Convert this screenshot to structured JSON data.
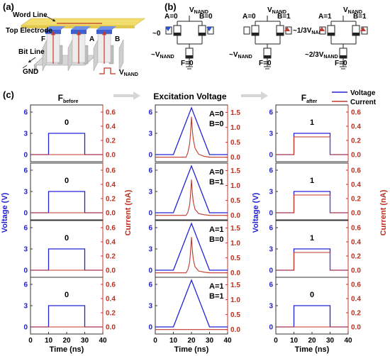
{
  "panel_labels": {
    "a": "(a)",
    "b": "(b)",
    "c": "(c)"
  },
  "panel_a": {
    "word_line": "Word Line",
    "top_electrode": "Top Electrode",
    "bit_line": "Bit Line",
    "gnd": "GND",
    "vnand_main": "V",
    "vnand_sub": "NAND",
    "cells": [
      "F",
      "A",
      "B"
    ]
  },
  "panel_b": {
    "circuits": [
      {
        "vnand": "V",
        "vnand_sub": "NAND",
        "a_label": "A=0",
        "b_label": "B=0",
        "f_label": "F=0",
        "left_note": "~0",
        "bottom_note_main": "~V",
        "bottom_note_sub": "NAND",
        "right_note_main": "",
        "right_note_sub": ""
      },
      {
        "vnand": "V",
        "vnand_sub": "NAND",
        "a_label": "A=0",
        "b_label": "B=1",
        "f_label": "F=0",
        "left_note": "",
        "bottom_note_main": "~V",
        "bottom_note_sub": "NAND",
        "right_note_main": "~1/3V",
        "right_note_sub": "NAND"
      },
      {
        "vnand": "V",
        "vnand_sub": "NAND",
        "a_label": "A=1",
        "b_label": "B=1",
        "f_label": "F=0",
        "left_note": "",
        "bottom_note_main": "~2/3V",
        "bottom_note_sub": "NAND",
        "right_note_main": "",
        "right_note_sub": ""
      }
    ]
  },
  "panel_c": {
    "column_titles": {
      "before_main": "F",
      "before_sub": "before",
      "excitation": "Excitation Voltage",
      "after_main": "F",
      "after_sub": "after"
    },
    "legend": [
      "Voltage",
      "Current"
    ],
    "ylabel_voltage": "Voltage (V)",
    "ylabel_current": "Current (nA)",
    "xlabel": "Time (ns)",
    "voltage_ticks": [
      "0",
      "3",
      "6"
    ],
    "current_ticks_small": [
      "0.0",
      "0.2",
      "0.4",
      "0.6"
    ],
    "current_ticks_large": [
      "0.0",
      "0.5",
      "1.0",
      "1.5"
    ],
    "x_ticks": [
      "0",
      "10",
      "20",
      "30",
      "40"
    ],
    "before_states": [
      "0",
      "0",
      "0",
      "0"
    ],
    "excitation_states": [
      {
        "a": "A=0",
        "b": "B=0"
      },
      {
        "a": "A=0",
        "b": "B=1"
      },
      {
        "a": "A=1",
        "b": "B=0"
      },
      {
        "a": "A=1",
        "b": "B=1"
      }
    ],
    "after_states": [
      "1",
      "1",
      "1",
      "0"
    ]
  },
  "colors": {
    "voltage": "#2323d6",
    "current": "#c0392b",
    "word_line": "#f2dd6e",
    "top_electrode": "#4a6fd6",
    "bit_line": "#c7c7c7",
    "arrow": "#c0392b"
  },
  "chart_data": [
    {
      "type": "line",
      "title": "Fbefore",
      "xlabel": "Time (ns)",
      "xlim": [
        0,
        40
      ],
      "ylim_voltage": [
        -1,
        7
      ],
      "ylim_current": [
        -0.1,
        0.7
      ],
      "series": [
        {
          "name": "Voltage",
          "x": [
            0,
            10,
            10,
            30,
            30,
            40
          ],
          "rows_y": [
            [
              0,
              0,
              3,
              3,
              0,
              0
            ],
            [
              0,
              0,
              3,
              3,
              0,
              0
            ],
            [
              0,
              0,
              3,
              3,
              0,
              0
            ],
            [
              0,
              0,
              3,
              3,
              0,
              0
            ]
          ]
        },
        {
          "name": "Current",
          "x": [
            0,
            40
          ],
          "rows_y": [
            [
              0,
              0
            ],
            [
              0,
              0
            ],
            [
              0,
              0
            ],
            [
              0,
              0
            ]
          ]
        }
      ],
      "state_labels": [
        "0",
        "0",
        "0",
        "0"
      ]
    },
    {
      "type": "line",
      "title": "Excitation Voltage",
      "xlabel": "Time (ns)",
      "xlim": [
        0,
        40
      ],
      "ylim_voltage": [
        -1,
        7
      ],
      "ylim_current": [
        -0.15,
        1.75
      ],
      "series": [
        {
          "name": "Voltage",
          "x": [
            0,
            10,
            20,
            30,
            40
          ],
          "rows_y": [
            [
              0,
              0,
              6.6,
              0,
              0
            ],
            [
              0,
              0,
              6.6,
              0,
              0
            ],
            [
              0,
              0,
              6.6,
              0,
              0
            ],
            [
              0,
              0,
              6.6,
              0,
              0
            ]
          ]
        },
        {
          "name": "Current",
          "x": [
            0,
            17,
            18,
            19,
            19.5,
            20,
            20.5,
            21,
            22,
            24,
            27,
            30,
            40
          ],
          "rows_y": [
            [
              0,
              0,
              0.15,
              0.45,
              0.8,
              1.35,
              0.9,
              0.6,
              0.3,
              0.1,
              0.03,
              0,
              0
            ],
            [
              0,
              0,
              0.1,
              0.35,
              0.7,
              1.2,
              0.75,
              0.45,
              0.2,
              0.06,
              0.02,
              0,
              0
            ],
            [
              0,
              0,
              0.1,
              0.35,
              0.7,
              1.2,
              0.75,
              0.45,
              0.2,
              0.06,
              0.02,
              0,
              0
            ],
            [
              0,
              0,
              0,
              0,
              0,
              0,
              0,
              0,
              0,
              0,
              0,
              0,
              0
            ]
          ]
        }
      ],
      "state_labels": [
        [
          "A=0",
          "B=0"
        ],
        [
          "A=0",
          "B=1"
        ],
        [
          "A=1",
          "B=0"
        ],
        [
          "A=1",
          "B=1"
        ]
      ]
    },
    {
      "type": "line",
      "title": "Fafter",
      "xlabel": "Time (ns)",
      "xlim": [
        0,
        40
      ],
      "ylim_voltage": [
        -1,
        7
      ],
      "ylim_current": [
        -0.1,
        0.7
      ],
      "series": [
        {
          "name": "Voltage",
          "x": [
            0,
            10,
            10,
            30,
            30,
            40
          ],
          "rows_y": [
            [
              0,
              0,
              3,
              3,
              0,
              0
            ],
            [
              0,
              0,
              3,
              3,
              0,
              0
            ],
            [
              0,
              0,
              3,
              3,
              0,
              0
            ],
            [
              0,
              0,
              3,
              3,
              0,
              0
            ]
          ]
        },
        {
          "name": "Current",
          "x": [
            0,
            10,
            10,
            30,
            30,
            40
          ],
          "rows_y": [
            [
              0,
              0,
              0.25,
              0.25,
              0,
              0
            ],
            [
              0,
              0,
              0.25,
              0.25,
              0,
              0
            ],
            [
              0,
              0,
              0.25,
              0.25,
              0,
              0
            ],
            [
              0,
              0,
              0,
              0,
              0,
              0
            ]
          ]
        }
      ],
      "state_labels": [
        "1",
        "1",
        "1",
        "0"
      ]
    }
  ]
}
